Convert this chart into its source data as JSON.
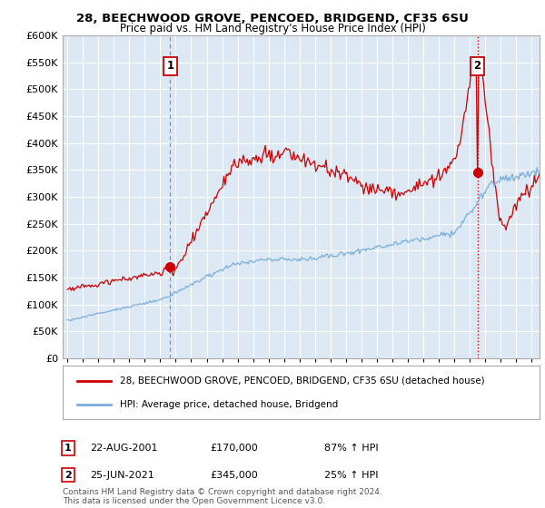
{
  "title": "28, BEECHWOOD GROVE, PENCOED, BRIDGEND, CF35 6SU",
  "subtitle": "Price paid vs. HM Land Registry's House Price Index (HPI)",
  "ytick_values": [
    0,
    50000,
    100000,
    150000,
    200000,
    250000,
    300000,
    350000,
    400000,
    450000,
    500000,
    550000,
    600000
  ],
  "ylim": [
    0,
    600000
  ],
  "xlim_start": 1994.7,
  "xlim_end": 2025.5,
  "sale1_x": 2001.644,
  "sale1_y": 170000,
  "sale2_x": 2021.486,
  "sale2_y": 345000,
  "line1_color": "#cc0000",
  "line2_color": "#7aaddc",
  "vline1_color": "#888888",
  "vline1_style": "--",
  "vline2_color": "#cc0000",
  "vline2_style": ":",
  "plot_bg_color": "#dce9f5",
  "background_color": "#ffffff",
  "grid_color": "#ffffff",
  "legend1_label": "28, BEECHWOOD GROVE, PENCOED, BRIDGEND, CF35 6SU (detached house)",
  "legend2_label": "HPI: Average price, detached house, Bridgend",
  "sale1_date": "22-AUG-2001",
  "sale1_price": "£170,000",
  "sale1_hpi": "87% ↑ HPI",
  "sale2_date": "25-JUN-2021",
  "sale2_price": "£345,000",
  "sale2_hpi": "25% ↑ HPI",
  "footnote": "Contains HM Land Registry data © Crown copyright and database right 2024.\nThis data is licensed under the Open Government Licence v3.0."
}
